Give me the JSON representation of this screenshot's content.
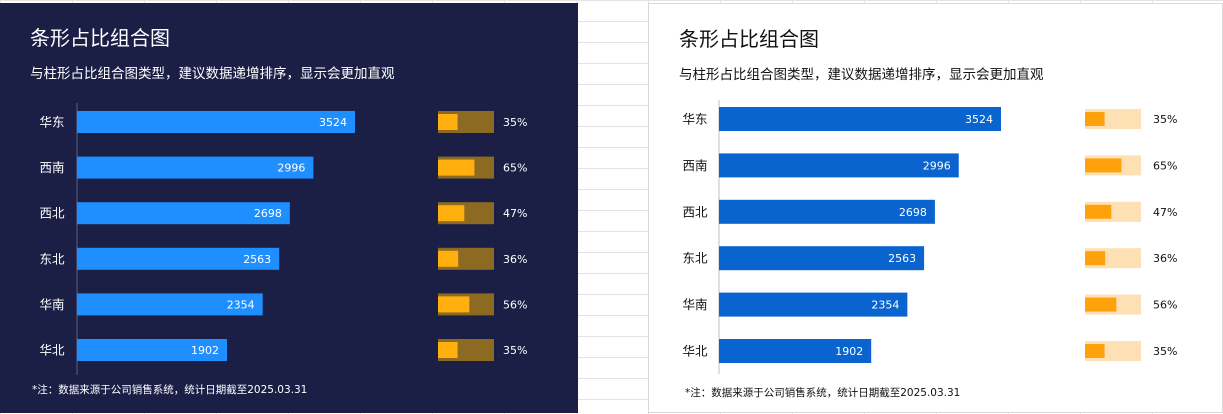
{
  "chart_data": [
    {
      "type": "bar",
      "title": "条形占比组合图",
      "subtitle": "与柱形占比组合图类型，建议数据递增排序，显示会更加直观",
      "categories": [
        "华东",
        "西南",
        "西北",
        "东北",
        "华南",
        "华北"
      ],
      "values": [
        3524,
        2996,
        2698,
        2563,
        2354,
        1902
      ],
      "percent_labels": [
        "35%",
        "65%",
        "47%",
        "36%",
        "56%",
        "35%"
      ],
      "percent_values": [
        35,
        65,
        47,
        36,
        56,
        35
      ],
      "xlim": [
        0,
        3524
      ],
      "grid": false,
      "note": "*注：数据来源于公司销售系统，统计日期截至2025.03.31",
      "theme": "dark",
      "colors": {
        "background": "#1b1f45",
        "bar": "#1f8fff",
        "track": "#8c6a22",
        "fill": "#ffb00f",
        "axis": "#5a5f86",
        "text": "#ffffff"
      }
    },
    {
      "type": "bar",
      "title": "条形占比组合图",
      "subtitle": "与柱形占比组合图类型，建议数据递增排序，显示会更加直观",
      "categories": [
        "华东",
        "西南",
        "西北",
        "东北",
        "华南",
        "华北"
      ],
      "values": [
        3524,
        2996,
        2698,
        2563,
        2354,
        1902
      ],
      "percent_labels": [
        "35%",
        "65%",
        "47%",
        "36%",
        "56%",
        "35%"
      ],
      "percent_values": [
        35,
        65,
        47,
        36,
        56,
        35
      ],
      "xlim": [
        0,
        3524
      ],
      "grid": false,
      "note": "*注：数据来源于公司销售系统，统计日期截至2025.03.31",
      "theme": "light",
      "colors": {
        "background": "#ffffff",
        "bar": "#0a64cf",
        "track": "#fde0b4",
        "fill": "#ffa10a",
        "axis": "#bfbfbf",
        "text": "#111111"
      }
    }
  ]
}
